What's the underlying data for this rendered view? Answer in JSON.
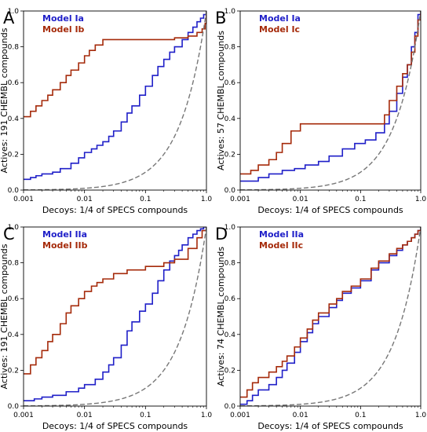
{
  "colors": {
    "blue": "#1f1fc8",
    "red": "#a52a0a",
    "random": "#777777"
  },
  "chart_data": [
    {
      "type": "line",
      "panel_label": "A",
      "xscale": "log",
      "xlim": [
        0.001,
        1
      ],
      "ylim": [
        0,
        1
      ],
      "xticks": [
        "0.001",
        "0.01",
        "0.1",
        "1.0"
      ],
      "yticks": [
        "0.0",
        "0.2",
        "0.4",
        "0.6",
        "0.8",
        "1.0"
      ],
      "xlabel": "Decoys: 1/4 of SPECS compounds",
      "ylabel": "Actives: 191 CHEMBL compounds",
      "legend": "top-left",
      "series": [
        {
          "name": "Model Ia",
          "color": "blue",
          "x": [
            0.001,
            0.0013,
            0.0016,
            0.002,
            0.003,
            0.004,
            0.006,
            0.008,
            0.01,
            0.013,
            0.016,
            0.02,
            0.025,
            0.03,
            0.04,
            0.05,
            0.06,
            0.08,
            0.1,
            0.13,
            0.16,
            0.2,
            0.25,
            0.3,
            0.4,
            0.5,
            0.6,
            0.7,
            0.8,
            0.9,
            1.0
          ],
          "y": [
            0.06,
            0.07,
            0.08,
            0.09,
            0.1,
            0.12,
            0.15,
            0.18,
            0.21,
            0.23,
            0.25,
            0.27,
            0.3,
            0.33,
            0.38,
            0.43,
            0.47,
            0.53,
            0.58,
            0.64,
            0.69,
            0.73,
            0.77,
            0.8,
            0.84,
            0.88,
            0.91,
            0.94,
            0.96,
            0.98,
            1.0
          ]
        },
        {
          "name": "Model Ib",
          "color": "red",
          "x": [
            0.001,
            0.0013,
            0.0016,
            0.002,
            0.0025,
            0.003,
            0.004,
            0.005,
            0.006,
            0.008,
            0.01,
            0.012,
            0.015,
            0.02,
            0.03,
            0.05,
            0.1,
            0.2,
            0.3,
            0.5,
            0.7,
            0.85,
            0.95,
            1.0
          ],
          "y": [
            0.41,
            0.44,
            0.47,
            0.5,
            0.53,
            0.56,
            0.6,
            0.64,
            0.67,
            0.71,
            0.75,
            0.78,
            0.81,
            0.84,
            0.84,
            0.84,
            0.84,
            0.84,
            0.85,
            0.86,
            0.88,
            0.9,
            0.93,
            1.0
          ]
        },
        {
          "name": "",
          "color": "random",
          "dashed": true,
          "func": "random",
          "x": [],
          "y": []
        }
      ]
    },
    {
      "type": "line",
      "panel_label": "B",
      "xscale": "log",
      "xlim": [
        0.001,
        1
      ],
      "ylim": [
        0,
        1
      ],
      "xticks": [
        "0.001",
        "0.01",
        "0.1",
        "1.0"
      ],
      "yticks": [
        "0.0",
        "0.2",
        "0.4",
        "0.6",
        "0.8",
        "1.0"
      ],
      "xlabel": "Decoys: 1/4 of SPECS compounds",
      "ylabel": "Actives: 57 CHEMBL compounds",
      "legend": "top-left",
      "series": [
        {
          "name": "Model Ia",
          "color": "blue",
          "x": [
            0.001,
            0.002,
            0.003,
            0.005,
            0.008,
            0.012,
            0.02,
            0.03,
            0.05,
            0.08,
            0.12,
            0.18,
            0.25,
            0.3,
            0.4,
            0.5,
            0.6,
            0.7,
            0.8,
            0.9,
            1.0
          ],
          "y": [
            0.05,
            0.07,
            0.09,
            0.11,
            0.12,
            0.14,
            0.16,
            0.19,
            0.23,
            0.26,
            0.28,
            0.32,
            0.37,
            0.44,
            0.54,
            0.63,
            0.7,
            0.8,
            0.88,
            0.98,
            1.0
          ]
        },
        {
          "name": "Model Ic",
          "color": "red",
          "x": [
            0.001,
            0.0015,
            0.002,
            0.003,
            0.004,
            0.005,
            0.007,
            0.01,
            0.2,
            0.25,
            0.3,
            0.4,
            0.5,
            0.6,
            0.7,
            0.8,
            0.9,
            1.0
          ],
          "y": [
            0.09,
            0.11,
            0.14,
            0.17,
            0.21,
            0.26,
            0.33,
            0.37,
            0.37,
            0.42,
            0.5,
            0.58,
            0.65,
            0.7,
            0.77,
            0.86,
            0.95,
            1.0
          ]
        },
        {
          "name": "",
          "color": "random",
          "dashed": true,
          "func": "random",
          "x": [],
          "y": []
        }
      ]
    },
    {
      "type": "line",
      "panel_label": "C",
      "xscale": "log",
      "xlim": [
        0.001,
        1
      ],
      "ylim": [
        0,
        1
      ],
      "xticks": [
        "0.001",
        "0.01",
        "0.1",
        "1.0"
      ],
      "yticks": [
        "0.0",
        "0.2",
        "0.4",
        "0.6",
        "0.8",
        "1.0"
      ],
      "xlabel": "Decoys: 1/4 of SPECS compounds",
      "ylabel": "Actives: 191 CHEMBL compounds",
      "legend": "top-left",
      "series": [
        {
          "name": "Model IIa",
          "color": "blue",
          "x": [
            0.001,
            0.0015,
            0.002,
            0.003,
            0.005,
            0.008,
            0.01,
            0.015,
            0.02,
            0.025,
            0.03,
            0.04,
            0.05,
            0.06,
            0.08,
            0.1,
            0.13,
            0.16,
            0.2,
            0.25,
            0.3,
            0.35,
            0.4,
            0.5,
            0.6,
            0.7,
            0.8,
            0.9,
            1.0
          ],
          "y": [
            0.03,
            0.04,
            0.05,
            0.06,
            0.08,
            0.1,
            0.12,
            0.15,
            0.19,
            0.23,
            0.27,
            0.34,
            0.42,
            0.47,
            0.53,
            0.57,
            0.63,
            0.7,
            0.76,
            0.81,
            0.84,
            0.87,
            0.9,
            0.94,
            0.96,
            0.98,
            0.99,
            1.0,
            1.0
          ]
        },
        {
          "name": "Model IIb",
          "color": "red",
          "x": [
            0.001,
            0.0013,
            0.0016,
            0.002,
            0.0025,
            0.003,
            0.004,
            0.005,
            0.006,
            0.008,
            0.01,
            0.013,
            0.016,
            0.02,
            0.03,
            0.05,
            0.1,
            0.2,
            0.3,
            0.5,
            0.7,
            0.85,
            1.0
          ],
          "y": [
            0.18,
            0.23,
            0.27,
            0.31,
            0.36,
            0.4,
            0.46,
            0.52,
            0.56,
            0.6,
            0.64,
            0.67,
            0.69,
            0.71,
            0.74,
            0.76,
            0.78,
            0.8,
            0.82,
            0.88,
            0.94,
            0.98,
            1.0
          ]
        },
        {
          "name": "",
          "color": "random",
          "dashed": true,
          "func": "random",
          "x": [],
          "y": []
        }
      ]
    },
    {
      "type": "line",
      "panel_label": "D",
      "xscale": "log",
      "xlim": [
        0.001,
        1
      ],
      "ylim": [
        0,
        1
      ],
      "xticks": [
        "0.001",
        "0.01",
        "0.1",
        "1.0"
      ],
      "yticks": [
        "0.0",
        "0.2",
        "0.4",
        "0.6",
        "0.8",
        "1.0"
      ],
      "xlabel": "Decoys: 1/4 of SPECS compounds",
      "ylabel": "Actives: 74 CHEMBL compounds",
      "legend": "top-left",
      "series": [
        {
          "name": "Model IIa",
          "color": "blue",
          "x": [
            0.001,
            0.0013,
            0.0016,
            0.002,
            0.003,
            0.004,
            0.005,
            0.006,
            0.008,
            0.01,
            0.013,
            0.016,
            0.02,
            0.03,
            0.04,
            0.05,
            0.07,
            0.1,
            0.15,
            0.2,
            0.3,
            0.4,
            0.5,
            0.6,
            0.7,
            0.8,
            0.9,
            1.0
          ],
          "y": [
            0.01,
            0.03,
            0.06,
            0.09,
            0.12,
            0.16,
            0.2,
            0.24,
            0.3,
            0.36,
            0.41,
            0.46,
            0.5,
            0.55,
            0.59,
            0.63,
            0.66,
            0.7,
            0.76,
            0.8,
            0.84,
            0.87,
            0.9,
            0.92,
            0.94,
            0.96,
            0.98,
            1.0
          ]
        },
        {
          "name": "Model IIc",
          "color": "red",
          "x": [
            0.001,
            0.0013,
            0.0016,
            0.002,
            0.003,
            0.004,
            0.005,
            0.006,
            0.008,
            0.01,
            0.013,
            0.016,
            0.02,
            0.03,
            0.04,
            0.05,
            0.07,
            0.1,
            0.15,
            0.2,
            0.3,
            0.4,
            0.5,
            0.6,
            0.7,
            0.8,
            0.9,
            1.0
          ],
          "y": [
            0.05,
            0.09,
            0.13,
            0.16,
            0.19,
            0.22,
            0.25,
            0.28,
            0.33,
            0.38,
            0.43,
            0.48,
            0.52,
            0.57,
            0.6,
            0.64,
            0.67,
            0.71,
            0.77,
            0.81,
            0.85,
            0.88,
            0.9,
            0.92,
            0.94,
            0.96,
            0.98,
            1.0
          ]
        },
        {
          "name": "",
          "color": "random",
          "dashed": true,
          "func": "random",
          "x": [],
          "y": []
        }
      ]
    }
  ]
}
